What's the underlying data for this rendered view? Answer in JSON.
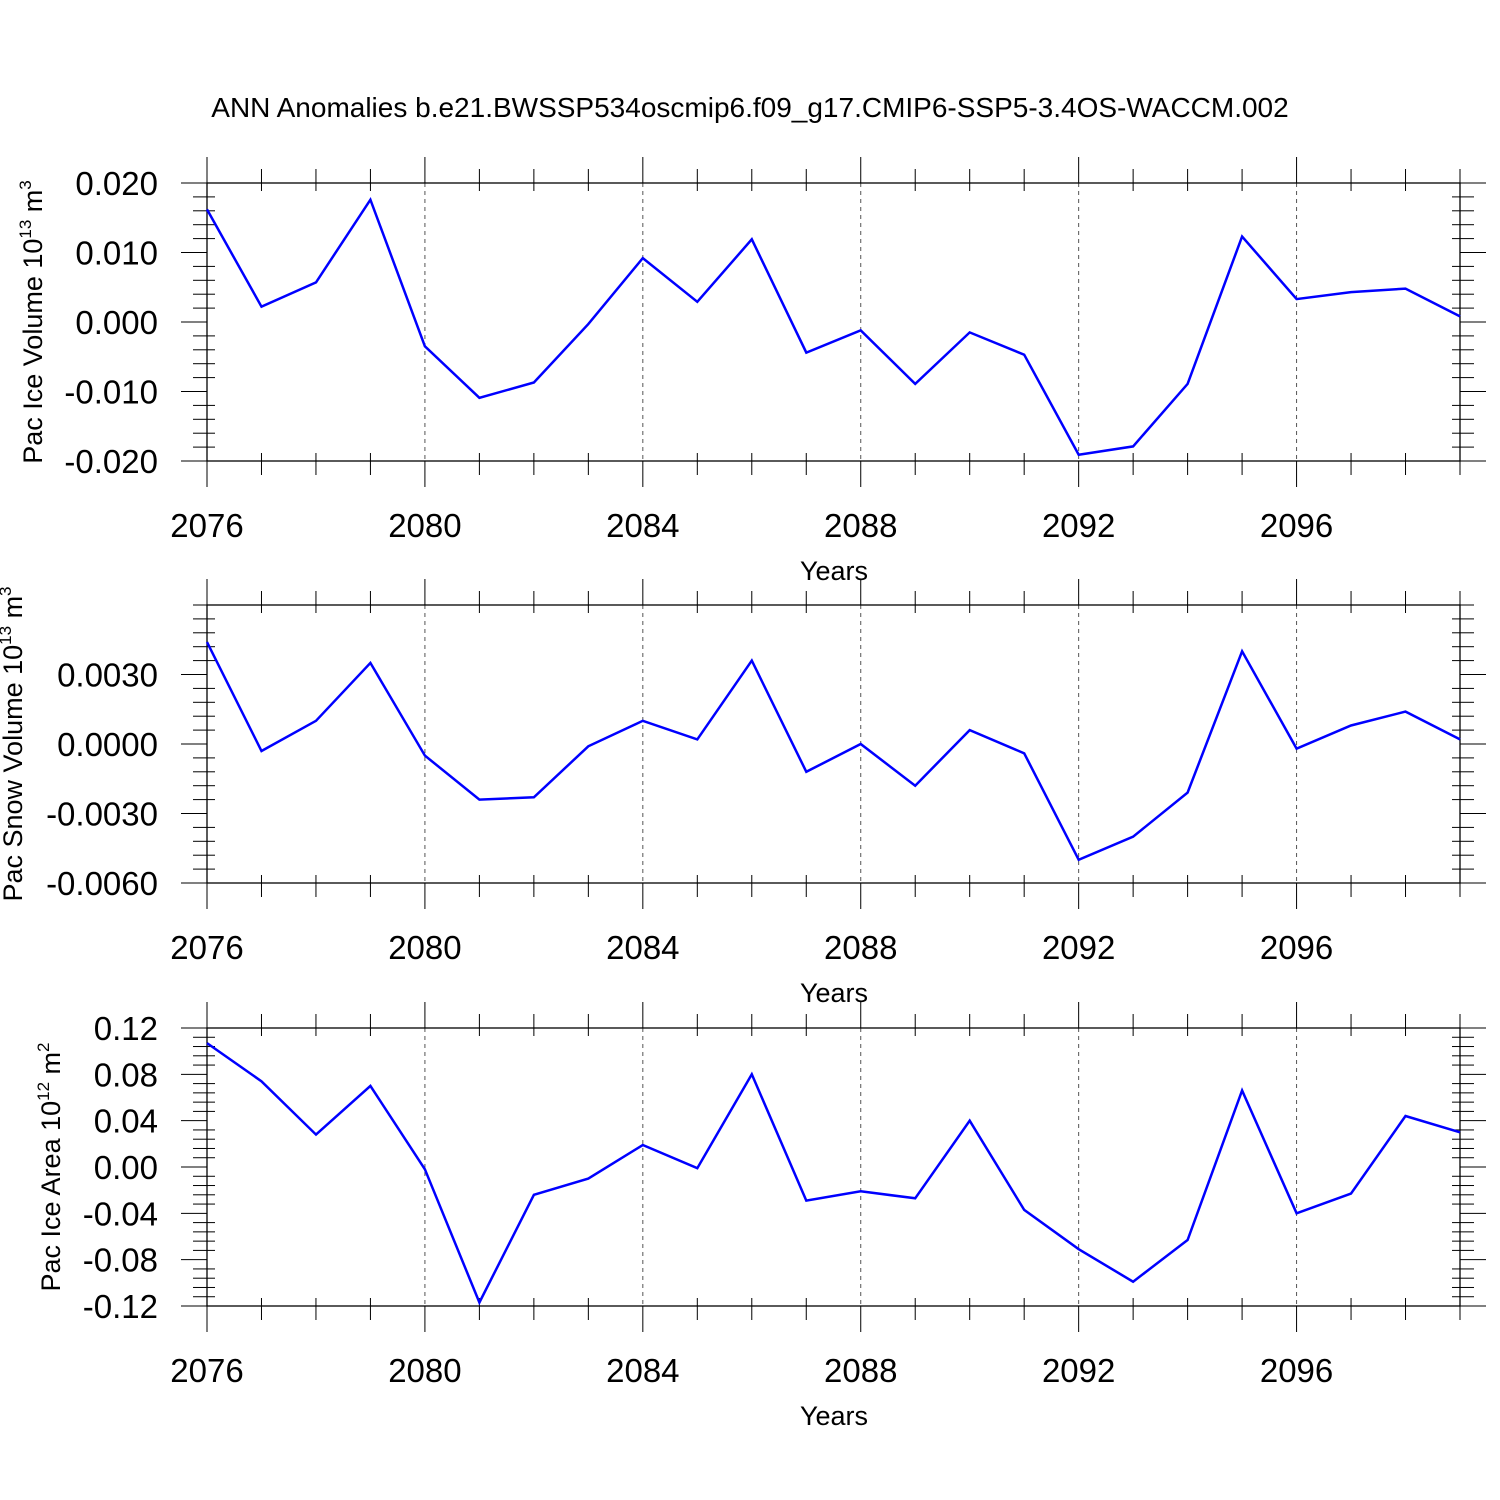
{
  "title": "ANN Anomalies b.e21.BWSSP534oscmip6.f09_g17.CMIP6-SSP5-3.4OS-WACCM.002",
  "line_color": "#0000ff",
  "chart_data": [
    {
      "type": "line",
      "ylabel": "Pac Ice Volume 10",
      "ylabel_exp": "13",
      "ylabel_unit": " m",
      "ylabel_unit_exp": "3",
      "xlabel": "Years",
      "xlim": [
        2076,
        2099
      ],
      "ylim": [
        -0.02,
        0.02
      ],
      "x_ticks": [
        "2076",
        "2080",
        "2084",
        "2088",
        "2092",
        "2096"
      ],
      "y_ticks": [
        "0.020",
        "0.010",
        "0.000",
        "-0.010",
        "-0.020"
      ],
      "y_tick_values": [
        0.02,
        0.01,
        0.0,
        -0.01,
        -0.02
      ],
      "x": [
        2076,
        2077,
        2078,
        2079,
        2080,
        2081,
        2082,
        2083,
        2084,
        2085,
        2086,
        2087,
        2088,
        2089,
        2090,
        2091,
        2092,
        2093,
        2094,
        2095,
        2096,
        2097,
        2098,
        2099
      ],
      "values": [
        0.0162,
        0.0022,
        0.0057,
        0.0176,
        -0.0035,
        -0.0109,
        -0.0087,
        -0.0003,
        0.0092,
        0.0029,
        0.0119,
        -0.0044,
        -0.0012,
        -0.0089,
        -0.0015,
        -0.0047,
        -0.0191,
        -0.0179,
        -0.0089,
        0.0123,
        0.0033,
        0.0043,
        0.0048,
        0.0008
      ]
    },
    {
      "type": "line",
      "ylabel": "Pac Snow Volume 10",
      "ylabel_exp": "13",
      "ylabel_unit": " m",
      "ylabel_unit_exp": "3",
      "xlabel": "Years",
      "xlim": [
        2076,
        2099
      ],
      "ylim": [
        -0.006,
        0.006
      ],
      "x_ticks": [
        "2076",
        "2080",
        "2084",
        "2088",
        "2092",
        "2096"
      ],
      "y_ticks": [
        "0.0030",
        "0.0000",
        "-0.0030",
        "-0.0060"
      ],
      "y_tick_values": [
        0.003,
        0.0,
        -0.003,
        -0.006
      ],
      "x": [
        2076,
        2077,
        2078,
        2079,
        2080,
        2081,
        2082,
        2083,
        2084,
        2085,
        2086,
        2087,
        2088,
        2089,
        2090,
        2091,
        2092,
        2093,
        2094,
        2095,
        2096,
        2097,
        2098,
        2099
      ],
      "values": [
        0.0044,
        -0.0003,
        0.001,
        0.0035,
        -0.0005,
        -0.0024,
        -0.0023,
        -0.0001,
        0.001,
        0.0002,
        0.0036,
        -0.0012,
        0.0,
        -0.0018,
        0.0006,
        -0.0004,
        -0.005,
        -0.004,
        -0.0021,
        0.004,
        -0.0002,
        0.0008,
        0.0014,
        0.0002
      ]
    },
    {
      "type": "line",
      "ylabel": "Pac Ice Area 10",
      "ylabel_exp": "12",
      "ylabel_unit": " m",
      "ylabel_unit_exp": "2",
      "xlabel": "Years",
      "xlim": [
        2076,
        2099
      ],
      "ylim": [
        -0.12,
        0.12
      ],
      "x_ticks": [
        "2076",
        "2080",
        "2084",
        "2088",
        "2092",
        "2096"
      ],
      "y_ticks": [
        "0.12",
        "0.08",
        "0.04",
        "0.00",
        "-0.04",
        "-0.08",
        "-0.12"
      ],
      "y_tick_values": [
        0.12,
        0.08,
        0.04,
        0.0,
        -0.04,
        -0.08,
        -0.12
      ],
      "x": [
        2076,
        2077,
        2078,
        2079,
        2080,
        2081,
        2082,
        2083,
        2084,
        2085,
        2086,
        2087,
        2088,
        2089,
        2090,
        2091,
        2092,
        2093,
        2094,
        2095,
        2096,
        2097,
        2098,
        2099
      ],
      "values": [
        0.107,
        0.074,
        0.028,
        0.07,
        -0.002,
        -0.117,
        -0.024,
        -0.01,
        0.019,
        -0.001,
        0.08,
        -0.029,
        -0.021,
        -0.027,
        0.04,
        -0.037,
        -0.071,
        -0.099,
        -0.063,
        0.066,
        -0.04,
        -0.023,
        0.044,
        0.03
      ]
    }
  ]
}
